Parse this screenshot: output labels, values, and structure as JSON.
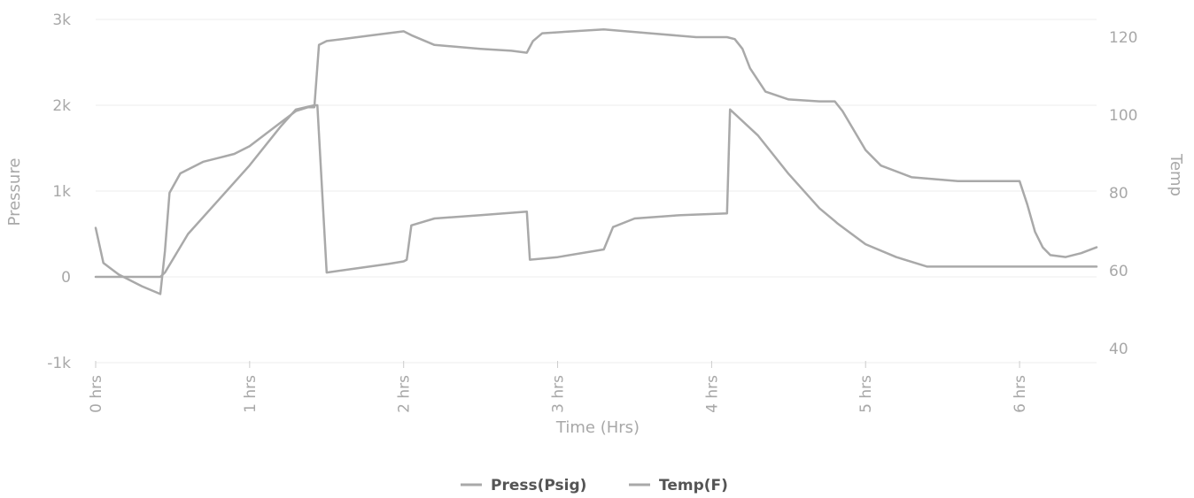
{
  "chart_data": {
    "type": "line",
    "title": "",
    "xlabel": "Time (Hrs)",
    "ylabel_left": "Pressure",
    "ylabel_right": "Temp",
    "xlim": [
      0,
      6.5
    ],
    "ylim_left": [
      -1000,
      3000
    ],
    "ylim_right": [
      40,
      125
    ],
    "x_ticks": [
      0,
      1,
      2,
      3,
      4,
      5,
      6
    ],
    "x_tick_labels": [
      "0 hrs",
      "1 hrs",
      "2 hrs",
      "3 hrs",
      "4 hrs",
      "5 hrs",
      "6 hrs"
    ],
    "y_left_ticks": [
      -1000,
      0,
      1000,
      2000,
      3000
    ],
    "y_left_tick_labels": [
      "-1k",
      "0",
      "1k",
      "2k",
      "3k"
    ],
    "y_right_ticks": [
      40,
      60,
      80,
      100,
      120
    ],
    "y_right_tick_labels": [
      "40",
      "60",
      "80",
      "100",
      "120"
    ],
    "grid": true,
    "legend_position": "bottom-center",
    "series": [
      {
        "name": "Press(Psig)",
        "axis": "left",
        "color": "#a9a9a9",
        "x": [
          0,
          0.42,
          0.45,
          0.5,
          0.6,
          0.8,
          1.0,
          1.2,
          1.3,
          1.42,
          1.44,
          1.5,
          1.7,
          1.9,
          2.0,
          2.02,
          2.05,
          2.2,
          2.5,
          2.8,
          2.82,
          3.0,
          3.3,
          3.33,
          3.36,
          3.5,
          3.8,
          4.1,
          4.12,
          4.3,
          4.5,
          4.7,
          4.8,
          4.82,
          5.0,
          5.2,
          5.4,
          5.6,
          5.8,
          6.0,
          6.2,
          6.4,
          6.5
        ],
        "y": [
          0,
          0,
          50,
          200,
          500,
          900,
          1300,
          1750,
          1950,
          2000,
          2000,
          50,
          100,
          150,
          180,
          200,
          600,
          680,
          720,
          760,
          200,
          230,
          320,
          450,
          580,
          680,
          720,
          740,
          1950,
          1650,
          1200,
          800,
          650,
          620,
          380,
          230,
          120,
          120,
          120,
          120,
          120,
          120,
          120
        ]
      },
      {
        "name": "Temp(F)",
        "axis": "right",
        "color": "#a9a9a9",
        "x": [
          0,
          0.05,
          0.15,
          0.3,
          0.42,
          0.45,
          0.48,
          0.55,
          0.7,
          0.8,
          0.9,
          1.0,
          1.1,
          1.2,
          1.3,
          1.38,
          1.42,
          1.45,
          1.5,
          1.6,
          1.8,
          2.0,
          2.05,
          2.2,
          2.5,
          2.7,
          2.8,
          2.82,
          2.84,
          2.9,
          3.1,
          3.3,
          3.6,
          3.9,
          4.1,
          4.15,
          4.2,
          4.25,
          4.35,
          4.5,
          4.7,
          4.8,
          4.85,
          5.0,
          5.1,
          5.3,
          5.6,
          6.0,
          6.05,
          6.1,
          6.15,
          6.2,
          6.3,
          6.4,
          6.5
        ],
        "y": [
          71,
          62,
          59,
          56,
          54,
          65,
          80,
          85,
          88,
          89,
          90,
          92,
          95,
          98,
          101,
          102,
          102,
          118,
          119,
          119.5,
          120.5,
          121.5,
          120.5,
          118,
          117,
          116.5,
          116,
          117.5,
          119,
          121,
          121.5,
          122,
          121,
          120,
          120,
          119.5,
          117,
          112,
          106,
          104,
          103.5,
          103.5,
          101,
          91,
          87,
          84,
          83,
          83,
          77,
          70,
          66,
          64,
          63.5,
          64.5,
          66
        ]
      }
    ]
  }
}
